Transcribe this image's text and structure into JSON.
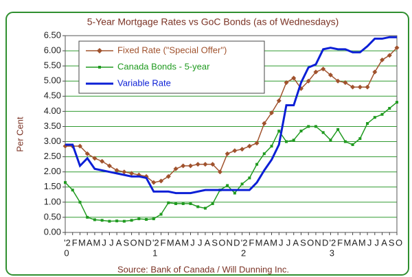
{
  "chart_data": {
    "type": "line",
    "title": "5-Year Mortgage Rates vs GoC Bonds (as of Wednesdays)",
    "y_label": "Per Cent",
    "source": "Source: Bank of Canada  / Will Dunning Inc.",
    "categories": [
      "'2",
      "F",
      "M",
      "A",
      "M",
      "J",
      "J",
      "A",
      "S",
      "O",
      "N",
      "D",
      "'2",
      "F",
      "M",
      "A",
      "M",
      "J",
      "J",
      "A",
      "S",
      "O",
      "N",
      "D",
      "'2",
      "F",
      "M",
      "A",
      "M",
      "J",
      "J",
      "A",
      "S",
      "O",
      "N",
      "D",
      "'2",
      "F",
      "M",
      "A",
      "M",
      "J",
      "J",
      "A",
      "S",
      "O"
    ],
    "year_labels": [
      "0",
      "1",
      "2",
      "3"
    ],
    "ylim": [
      0,
      6.5
    ],
    "yticks": [
      {
        "value": 0,
        "label": "0.00"
      },
      {
        "value": 0.5,
        "label": "0.50"
      },
      {
        "value": 1,
        "label": "1.00"
      },
      {
        "value": 1.5,
        "label": "1.50"
      },
      {
        "value": 2,
        "label": "2.00"
      },
      {
        "value": 2.5,
        "label": "2.50"
      },
      {
        "value": 3,
        "label": "3.00"
      },
      {
        "value": 3.5,
        "label": "3.50"
      },
      {
        "value": 4,
        "label": "4.00"
      },
      {
        "value": 4.5,
        "label": "4.50"
      },
      {
        "value": 5,
        "label": "5.00"
      },
      {
        "value": 5.5,
        "label": "5.50"
      },
      {
        "value": 6,
        "label": "6.00"
      },
      {
        "value": 6.5,
        "label": "6.50"
      }
    ],
    "grid": true,
    "legend": "upper left",
    "series": [
      {
        "name": "Fixed Rate (\"Special Offer\")",
        "color": "#a0522d",
        "marker": "diamond",
        "values": [
          2.85,
          2.85,
          2.85,
          2.6,
          2.45,
          2.35,
          2.2,
          2.05,
          2.0,
          1.95,
          1.9,
          1.85,
          1.65,
          1.7,
          1.85,
          2.1,
          2.2,
          2.2,
          2.25,
          2.25,
          2.25,
          2.0,
          2.6,
          2.7,
          2.75,
          2.85,
          2.95,
          3.6,
          3.95,
          4.35,
          4.95,
          5.1,
          4.75,
          5.0,
          5.3,
          5.4,
          5.2,
          5.0,
          4.95,
          4.8,
          4.8,
          4.8,
          5.3,
          5.7,
          5.85,
          6.1
        ]
      },
      {
        "name": "Canada Bonds - 5-year",
        "color": "#1f9a1f",
        "marker": "square",
        "values": [
          1.65,
          1.4,
          1.0,
          0.5,
          0.42,
          0.4,
          0.37,
          0.38,
          0.37,
          0.4,
          0.45,
          0.43,
          0.45,
          0.6,
          0.98,
          0.95,
          0.95,
          0.95,
          0.85,
          0.8,
          0.95,
          1.4,
          1.55,
          1.3,
          1.6,
          1.8,
          2.25,
          2.6,
          2.85,
          3.35,
          3.0,
          3.05,
          3.35,
          3.5,
          3.5,
          3.3,
          3.05,
          3.4,
          3.0,
          2.9,
          3.1,
          3.6,
          3.8,
          3.9,
          4.1,
          4.3
        ]
      },
      {
        "name": "Variable Rate",
        "color": "#0b1fd6",
        "marker": "none",
        "values": [
          2.9,
          2.9,
          2.2,
          2.45,
          2.1,
          2.05,
          2.0,
          1.95,
          1.9,
          1.85,
          1.85,
          1.8,
          1.35,
          1.35,
          1.35,
          1.3,
          1.3,
          1.3,
          1.35,
          1.4,
          1.4,
          1.4,
          1.4,
          1.4,
          1.4,
          1.4,
          1.65,
          2.05,
          2.4,
          2.9,
          4.2,
          4.2,
          4.95,
          5.45,
          5.55,
          6.05,
          6.1,
          6.05,
          6.05,
          5.95,
          5.95,
          6.15,
          6.4,
          6.4,
          6.45,
          6.45
        ]
      }
    ]
  }
}
